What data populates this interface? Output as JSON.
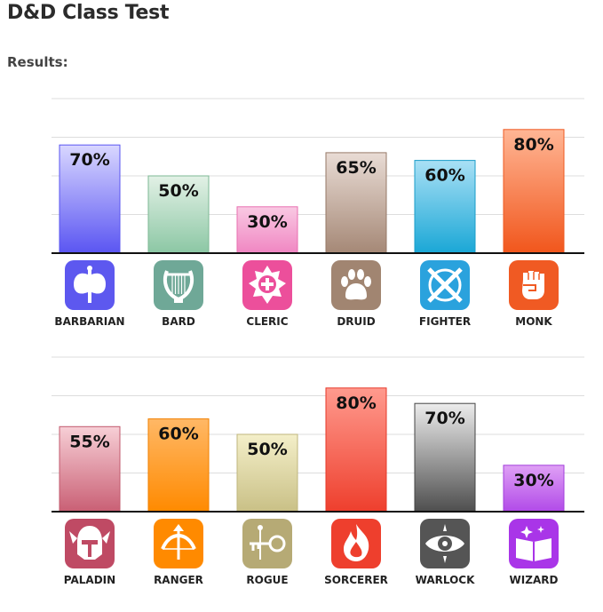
{
  "page": {
    "title": "D&D Class Test",
    "subtitle": "Results:"
  },
  "chart_data": [
    {
      "type": "bar",
      "categories": [
        "BARBARIAN",
        "BARD",
        "CLERIC",
        "DRUID",
        "FIGHTER",
        "MONK"
      ],
      "values": [
        70,
        50,
        30,
        65,
        60,
        80
      ],
      "value_labels": [
        "70%",
        "50%",
        "30%",
        "65%",
        "60%",
        "80%"
      ],
      "ylim": [
        0,
        100
      ],
      "grid": true,
      "colors": [
        {
          "top": "#d9d7ff",
          "bottom": "#5a55f2",
          "border": "#5a55f2"
        },
        {
          "top": "#e3f1e6",
          "bottom": "#8cc7a4",
          "border": "#7db894"
        },
        {
          "top": "#f9c9e3",
          "bottom": "#f086c2",
          "border": "#e86fb0"
        },
        {
          "top": "#e9dcd5",
          "bottom": "#a58876",
          "border": "#967867"
        },
        {
          "top": "#a9e0f5",
          "bottom": "#1aa7d6",
          "border": "#1a9dc9"
        },
        {
          "top": "#ffb695",
          "bottom": "#f1561c",
          "border": "#ef5a22"
        }
      ],
      "icons": [
        {
          "name": "barbarian-axe-icon",
          "color": "#5d58ef"
        },
        {
          "name": "bard-lyre-icon",
          "color": "#6fa897"
        },
        {
          "name": "cleric-sun-icon",
          "color": "#ec4f9b"
        },
        {
          "name": "druid-paw-icon",
          "color": "#a18571"
        },
        {
          "name": "fighter-swords-icon",
          "color": "#2aa2dd"
        },
        {
          "name": "monk-fist-icon",
          "color": "#f05a23"
        }
      ]
    },
    {
      "type": "bar",
      "categories": [
        "PALADIN",
        "RANGER",
        "ROGUE",
        "SORCERER",
        "WARLOCK",
        "WIZARD"
      ],
      "values": [
        55,
        60,
        50,
        80,
        70,
        30
      ],
      "value_labels": [
        "55%",
        "60%",
        "50%",
        "80%",
        "70%",
        "30%"
      ],
      "ylim": [
        0,
        100
      ],
      "grid": true,
      "colors": [
        {
          "top": "#f7cfd6",
          "bottom": "#c95f74",
          "border": "#c25a6e"
        },
        {
          "top": "#ffb866",
          "bottom": "#ff8a00",
          "border": "#f08000"
        },
        {
          "top": "#f4efc9",
          "bottom": "#c9c086",
          "border": "#bfb67d"
        },
        {
          "top": "#ff9a8e",
          "bottom": "#ee3f2d",
          "border": "#e6392a"
        },
        {
          "top": "#ececec",
          "bottom": "#4e4e4e",
          "border": "#444444"
        },
        {
          "top": "#dfa0f5",
          "bottom": "#b14ae8",
          "border": "#a23fdb"
        }
      ],
      "icons": [
        {
          "name": "paladin-helmet-icon",
          "color": "#bf4a64"
        },
        {
          "name": "ranger-bow-icon",
          "color": "#ff8a00"
        },
        {
          "name": "rogue-keys-icon",
          "color": "#b6aa75"
        },
        {
          "name": "sorcerer-flame-icon",
          "color": "#ee3f2d"
        },
        {
          "name": "warlock-eye-icon",
          "color": "#555555"
        },
        {
          "name": "wizard-book-icon",
          "color": "#a935e8"
        }
      ]
    }
  ]
}
